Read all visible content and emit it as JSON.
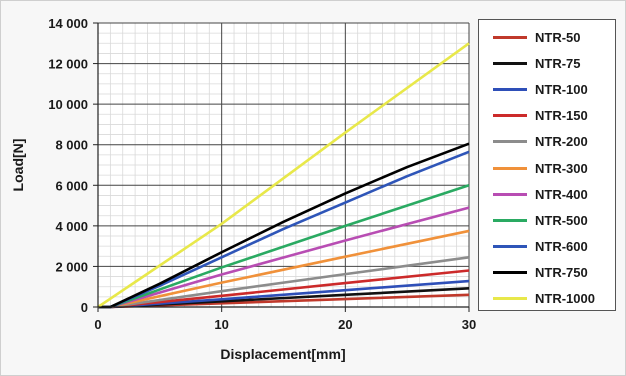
{
  "chart_data": {
    "type": "line",
    "xlabel": "Displacement[mm]",
    "ylabel": "Load[N]",
    "xlim": [
      0,
      30
    ],
    "ylim": [
      0,
      14000
    ],
    "x_ticks": [
      0,
      10,
      20,
      30
    ],
    "x_tick_labels": [
      "0",
      "10",
      "20",
      "30"
    ],
    "y_ticks": [
      0,
      2000,
      4000,
      6000,
      8000,
      10000,
      12000,
      14000
    ],
    "y_tick_labels": [
      "0",
      "2 000",
      "4 000",
      "6 000",
      "8 000",
      "10 000",
      "12 000",
      "14 000"
    ],
    "grid": true,
    "legend_position": "right",
    "series": [
      {
        "name": "NTR-50",
        "color": "#c0392b",
        "x": [
          0,
          1,
          10,
          20,
          30
        ],
        "y": [
          0,
          0,
          180,
          390,
          600
        ]
      },
      {
        "name": "NTR-75",
        "color": "#111111",
        "x": [
          0,
          1,
          10,
          20,
          30
        ],
        "y": [
          0,
          0,
          280,
          600,
          920
        ]
      },
      {
        "name": "NTR-100",
        "color": "#2e4fb8",
        "x": [
          0,
          1,
          10,
          20,
          30
        ],
        "y": [
          0,
          0,
          380,
          830,
          1280
        ]
      },
      {
        "name": "NTR-150",
        "color": "#cc2a2a",
        "x": [
          0,
          1,
          10,
          20,
          30
        ],
        "y": [
          0,
          0,
          550,
          1180,
          1800
        ]
      },
      {
        "name": "NTR-200",
        "color": "#8c8c8c",
        "x": [
          0,
          1,
          10,
          20,
          30
        ],
        "y": [
          0,
          0,
          780,
          1620,
          2450
        ]
      },
      {
        "name": "NTR-300",
        "color": "#f0913a",
        "x": [
          0,
          1,
          10,
          20,
          30
        ],
        "y": [
          0,
          0,
          1200,
          2480,
          3750
        ]
      },
      {
        "name": "NTR-400",
        "color": "#b84db3",
        "x": [
          0,
          1,
          10,
          20,
          30
        ],
        "y": [
          0,
          0,
          1600,
          3280,
          4900
        ]
      },
      {
        "name": "NTR-500",
        "color": "#2aaa62",
        "x": [
          0,
          1,
          10,
          20,
          30
        ],
        "y": [
          0,
          0,
          1950,
          4000,
          6000
        ]
      },
      {
        "name": "NTR-600",
        "color": "#2e55b8",
        "x": [
          0,
          1,
          5,
          10,
          15,
          20,
          25,
          30
        ],
        "y": [
          0,
          0,
          1050,
          2450,
          3850,
          5150,
          6450,
          7650
        ]
      },
      {
        "name": "NTR-750",
        "color": "#000000",
        "x": [
          0,
          1,
          5,
          10,
          15,
          20,
          25,
          30
        ],
        "y": [
          0,
          0,
          1150,
          2700,
          4200,
          5600,
          6900,
          8050
        ]
      },
      {
        "name": "NTR-1000",
        "color": "#e8e84a",
        "x": [
          0,
          10,
          20,
          30
        ],
        "y": [
          0,
          4100,
          8600,
          13000
        ]
      }
    ]
  }
}
